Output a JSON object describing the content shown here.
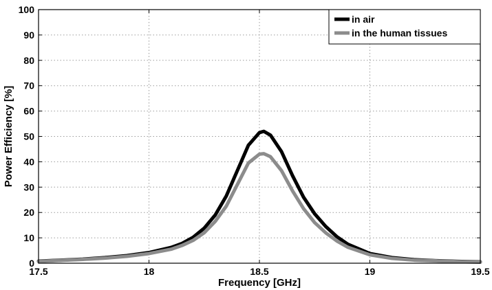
{
  "chart_data": {
    "type": "line",
    "xlabel": "Frequency [GHz]",
    "ylabel": "Power Efficiency [%]",
    "xlim": [
      17.5,
      19.5
    ],
    "ylim": [
      0,
      100
    ],
    "x_ticks": [
      17.5,
      18,
      18.5,
      19,
      19.5
    ],
    "y_ticks": [
      0,
      10,
      20,
      30,
      40,
      50,
      60,
      70,
      80,
      90,
      100
    ],
    "x_tick_labels": [
      "17.5",
      "18",
      "18.5",
      "19",
      "19.5"
    ],
    "y_tick_labels": [
      "0",
      "10",
      "20",
      "30",
      "40",
      "50",
      "60",
      "70",
      "80",
      "90",
      "100"
    ],
    "grid": true,
    "legend_position": "top-right",
    "series": [
      {
        "name": "in air",
        "color": "#000000",
        "x": [
          17.5,
          17.6,
          17.7,
          17.8,
          17.9,
          18.0,
          18.1,
          18.15,
          18.2,
          18.25,
          18.3,
          18.35,
          18.4,
          18.45,
          18.5,
          18.52,
          18.55,
          18.6,
          18.65,
          18.7,
          18.75,
          18.8,
          18.85,
          18.9,
          19.0,
          19.1,
          19.2,
          19.3,
          19.4,
          19.5
        ],
        "y": [
          0.8,
          1.2,
          1.6,
          2.2,
          3.0,
          4.2,
          6.2,
          7.8,
          10.2,
          13.8,
          19.0,
          26.5,
          36.5,
          46.5,
          51.5,
          52.0,
          50.5,
          44.0,
          34.5,
          26.0,
          19.5,
          14.5,
          10.5,
          7.5,
          3.8,
          2.2,
          1.4,
          1.0,
          0.7,
          0.5
        ]
      },
      {
        "name": "in the human tissues",
        "color": "#8c8c8c",
        "x": [
          17.5,
          17.6,
          17.7,
          17.8,
          17.9,
          18.0,
          18.1,
          18.15,
          18.2,
          18.25,
          18.3,
          18.35,
          18.4,
          18.45,
          18.5,
          18.52,
          18.55,
          18.6,
          18.65,
          18.7,
          18.75,
          18.8,
          18.85,
          18.9,
          19.0,
          19.1,
          19.2,
          19.3,
          19.4,
          19.5
        ],
        "y": [
          0.7,
          1.1,
          1.5,
          2.0,
          2.7,
          3.8,
          5.5,
          7.0,
          9.0,
          12.0,
          16.5,
          22.5,
          31.0,
          39.5,
          43.0,
          43.2,
          42.0,
          36.5,
          28.5,
          21.5,
          16.0,
          12.0,
          8.8,
          6.3,
          3.3,
          1.9,
          1.2,
          0.9,
          0.6,
          0.4
        ]
      }
    ]
  }
}
